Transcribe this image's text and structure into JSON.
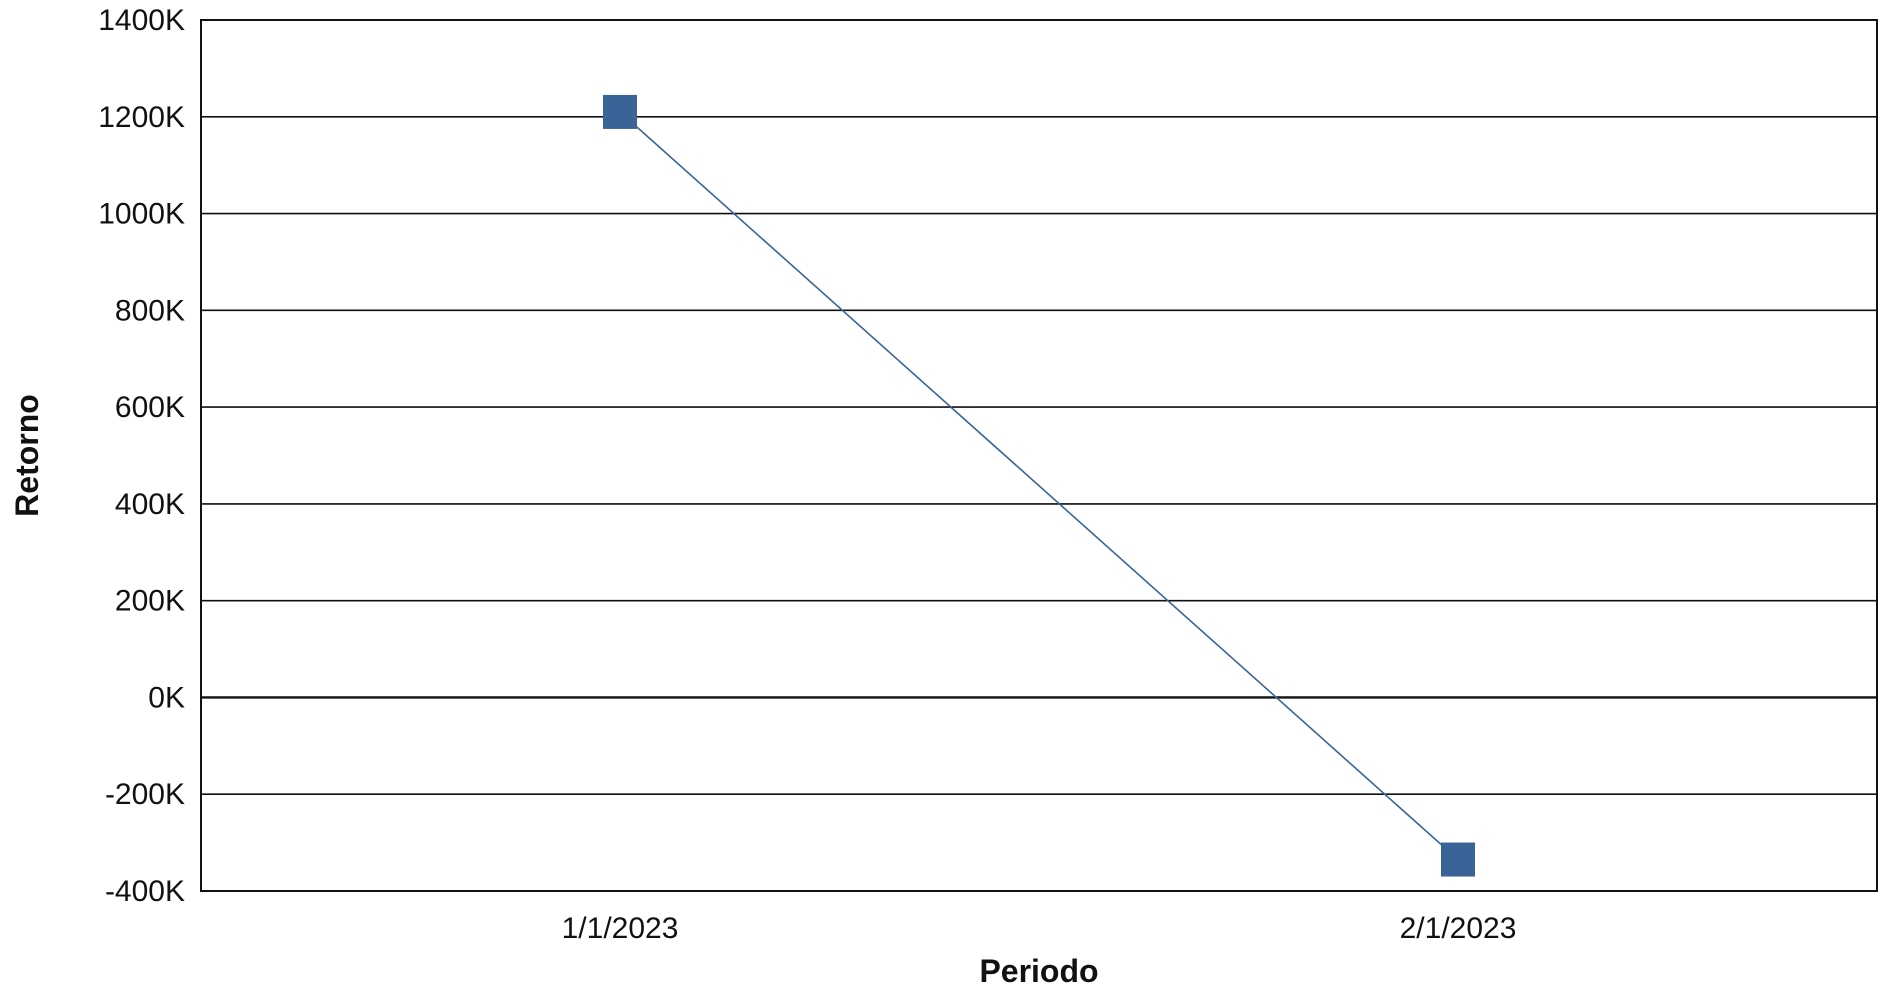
{
  "chart_data": {
    "type": "line",
    "title": "",
    "xlabel": "Periodo",
    "ylabel": "Retorno",
    "categories": [
      "1/1/2023",
      "2/1/2023"
    ],
    "series": [
      {
        "values": [
          1210000,
          -335000
        ],
        "color": "#3a6498",
        "marker": "square"
      }
    ],
    "ylim": [
      -400000,
      1400000
    ],
    "y_ticks": [
      -400000,
      -200000,
      0,
      200000,
      400000,
      600000,
      800000,
      1000000,
      1200000,
      1400000
    ],
    "y_tick_labels": [
      "-400K",
      "-200K",
      "0K",
      "200K",
      "400K",
      "600K",
      "800K",
      "1000K",
      "1200K",
      "1400K"
    ],
    "grid": true,
    "legend": "none"
  }
}
